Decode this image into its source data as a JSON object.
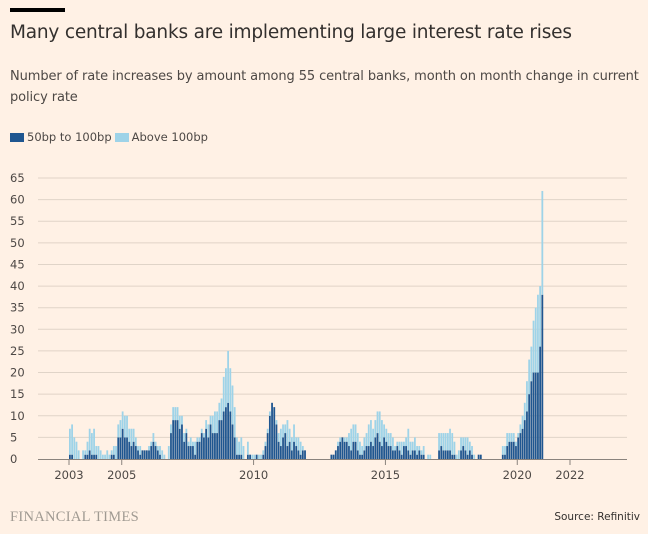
{
  "header": {
    "title": "Many central banks are implementing large interest rate rises",
    "subtitle": "Number of rate increases by amount among 55 central banks, month on month change in current policy rate"
  },
  "legend": [
    {
      "label": "50bp to 100bp",
      "color": "#1f5690"
    },
    {
      "label": "Above 100bp",
      "color": "#9ed3e8"
    }
  ],
  "footer": {
    "brand": "FINANCIAL TIMES",
    "source": "Source: Refinitiv"
  },
  "chart_data": {
    "type": "bar",
    "stacked": true,
    "title": "Many central banks are implementing large interest rate rises",
    "xlabel": "",
    "ylabel": "",
    "ylim": [
      0,
      65
    ],
    "yticks": [
      0,
      5,
      10,
      15,
      20,
      25,
      30,
      35,
      40,
      45,
      50,
      55,
      60,
      65
    ],
    "xticks": [
      {
        "label": "2003",
        "year": 2003.0
      },
      {
        "label": "2005",
        "year": 2005.0
      },
      {
        "label": "2010",
        "year": 2010.0
      },
      {
        "label": "2015",
        "year": 2015.0
      },
      {
        "label": "2020",
        "year": 2020.0
      },
      {
        "label": "2022",
        "year": 2022.0
      }
    ],
    "xlim_years": [
      2000.6,
      2024.2
    ],
    "start": "2003-01",
    "grid": true,
    "legend_position": "top-left",
    "series": [
      {
        "name": "50bp to 100bp",
        "color": "#1f5690",
        "values": [
          1,
          1,
          0,
          0,
          0,
          0,
          0,
          1,
          1,
          2,
          1,
          1,
          1,
          0,
          0,
          0,
          0,
          0,
          0,
          1,
          1,
          0,
          5,
          5,
          7,
          5,
          5,
          4,
          3,
          4,
          3,
          2,
          1,
          2,
          2,
          2,
          2,
          3,
          4,
          3,
          2,
          1,
          0,
          0,
          0,
          0,
          6,
          9,
          9,
          9,
          7,
          8,
          4,
          6,
          3,
          3,
          3,
          1,
          4,
          4,
          6,
          5,
          7,
          5,
          8,
          6,
          6,
          6,
          9,
          9,
          11,
          12,
          13,
          11,
          8,
          5,
          1,
          1,
          1,
          0,
          0,
          1,
          1,
          0,
          0,
          1,
          0,
          0,
          1,
          3,
          6,
          10,
          13,
          12,
          8,
          4,
          3,
          5,
          6,
          3,
          4,
          2,
          4,
          3,
          2,
          1,
          2,
          2,
          0,
          0,
          0,
          0,
          0,
          0,
          0,
          0,
          0,
          0,
          0,
          1,
          1,
          2,
          3,
          4,
          5,
          4,
          4,
          3,
          2,
          4,
          4,
          2,
          1,
          1,
          2,
          3,
          3,
          4,
          3,
          5,
          6,
          4,
          3,
          5,
          4,
          3,
          3,
          2,
          2,
          3,
          2,
          1,
          3,
          3,
          2,
          1,
          2,
          2,
          1,
          2,
          1,
          1,
          0,
          0,
          0,
          0,
          0,
          0,
          2,
          3,
          2,
          2,
          2,
          2,
          1,
          1,
          0,
          0,
          2,
          3,
          2,
          1,
          2,
          1,
          0,
          0,
          1,
          1,
          0,
          0,
          0,
          0,
          0,
          0,
          0,
          0,
          0,
          1,
          1,
          3,
          4,
          4,
          4,
          3,
          5,
          6,
          7,
          9,
          11,
          15,
          18,
          20,
          20,
          20,
          26,
          38
        ]
      },
      {
        "name": "Above 100bp",
        "color": "#9ed3e8",
        "values": [
          6,
          7,
          5,
          4,
          2,
          0,
          2,
          1,
          3,
          5,
          5,
          6,
          2,
          3,
          2,
          1,
          1,
          2,
          1,
          1,
          2,
          3,
          3,
          4,
          4,
          5,
          5,
          3,
          4,
          3,
          2,
          1,
          2,
          0,
          0,
          0,
          1,
          1,
          2,
          1,
          1,
          2,
          2,
          1,
          0,
          3,
          2,
          3,
          3,
          3,
          3,
          2,
          2,
          1,
          1,
          2,
          1,
          3,
          1,
          1,
          1,
          1,
          2,
          3,
          2,
          4,
          5,
          5,
          4,
          5,
          8,
          9,
          12,
          10,
          9,
          7,
          4,
          3,
          4,
          3,
          0,
          3,
          0,
          1,
          1,
          0,
          1,
          1,
          1,
          1,
          1,
          1,
          0,
          0,
          1,
          2,
          4,
          3,
          2,
          6,
          3,
          3,
          4,
          2,
          3,
          3,
          1,
          0,
          0,
          0,
          0,
          0,
          0,
          0,
          0,
          0,
          0,
          0,
          0,
          0,
          0,
          0,
          1,
          1,
          0,
          1,
          1,
          3,
          5,
          4,
          4,
          4,
          3,
          2,
          3,
          3,
          5,
          5,
          4,
          4,
          5,
          7,
          6,
          3,
          3,
          3,
          3,
          3,
          1,
          1,
          2,
          3,
          1,
          2,
          5,
          3,
          2,
          3,
          2,
          1,
          1,
          2,
          0,
          1,
          1,
          0,
          0,
          0,
          4,
          3,
          4,
          4,
          4,
          5,
          5,
          3,
          1,
          2,
          3,
          2,
          3,
          4,
          2,
          2,
          1,
          0,
          0,
          0,
          0,
          0,
          0,
          0,
          0,
          0,
          0,
          0,
          0,
          2,
          2,
          3,
          2,
          2,
          2,
          1,
          1,
          2,
          3,
          4,
          7,
          8,
          8,
          12,
          15,
          18,
          14,
          24
        ]
      }
    ]
  }
}
